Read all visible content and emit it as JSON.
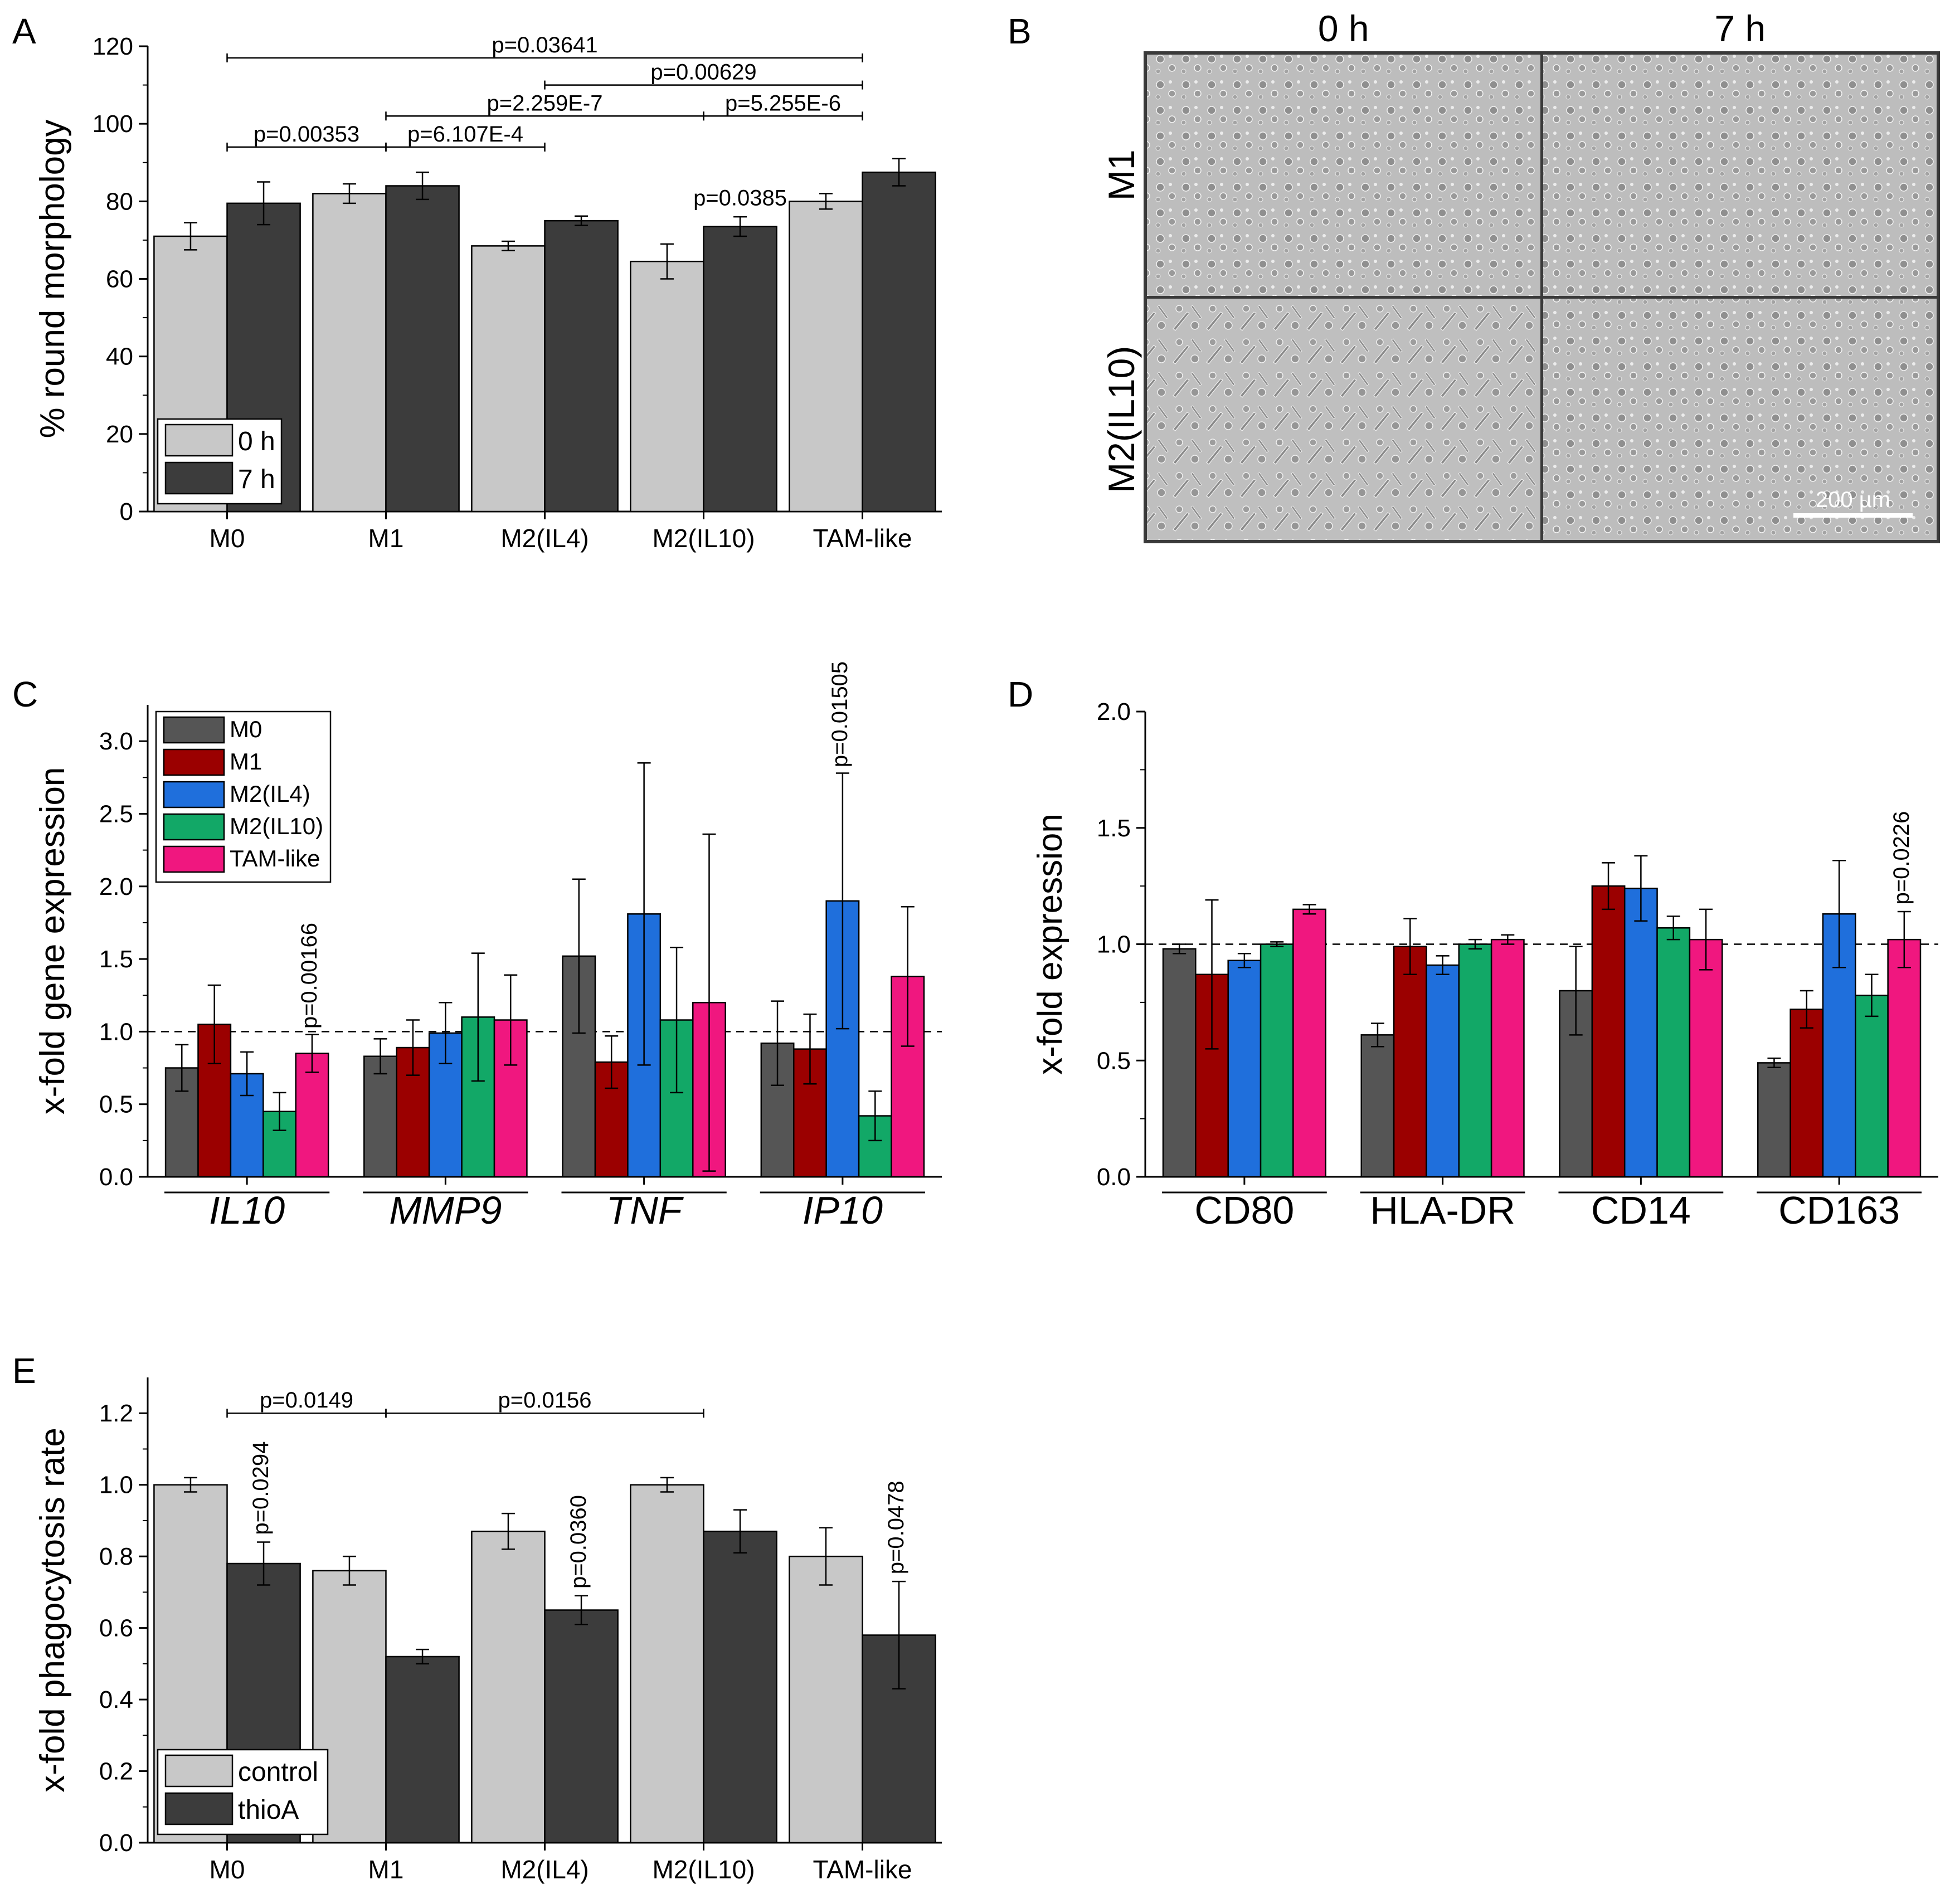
{
  "chart_data": [
    {
      "panel": "A",
      "type": "bar",
      "title": "",
      "ylabel": "% round morphology",
      "xlabel": "",
      "ylim": [
        0,
        120
      ],
      "yticks": [
        0,
        20,
        40,
        60,
        80,
        100,
        120
      ],
      "categories": [
        "M0",
        "M1",
        "M2(IL4)",
        "M2(IL10)",
        "TAM-like"
      ],
      "series": [
        {
          "name": "0 h",
          "color": "#c8c8c8",
          "values": [
            71,
            82,
            68.5,
            64.5,
            80
          ],
          "errors": [
            3.5,
            2.5,
            1.2,
            4.5,
            2
          ]
        },
        {
          "name": "7 h",
          "color": "#3c3c3c",
          "values": [
            79.5,
            84,
            75,
            73.5,
            87.5
          ],
          "errors": [
            5.5,
            3.5,
            1.2,
            2.5,
            3.5
          ]
        }
      ],
      "legend": "bottom-left",
      "annotations": [
        {
          "text": "p=0.03641",
          "from": 0,
          "to": 4,
          "y": 117
        },
        {
          "text": "p=0.00629",
          "from": 2,
          "to": 4,
          "y": 110
        },
        {
          "text": "p=2.259E-7",
          "from": 1,
          "to": 3,
          "y": 102
        },
        {
          "text": "p=5.255E-6",
          "from": 3,
          "to": 4,
          "y": 102
        },
        {
          "text": "p=0.00353",
          "from": 0,
          "to": 1,
          "y": 94
        },
        {
          "text": "p=6.107E-4",
          "from": 1,
          "to": 2,
          "y": 94
        },
        {
          "text": "p=0.0385",
          "category": 3,
          "series": 1,
          "y": 79
        }
      ]
    },
    {
      "panel": "B",
      "type": "image",
      "columns": [
        "0 h",
        "7 h"
      ],
      "rows": [
        "M1",
        "M2(IL10)"
      ],
      "scale_bar": "200 µm"
    },
    {
      "panel": "C",
      "type": "bar",
      "title": "",
      "ylabel": "x-fold gene expression",
      "xlabel": "",
      "ylim": [
        0,
        3.25
      ],
      "yticks": [
        0.0,
        0.5,
        1.0,
        1.5,
        2.0,
        2.5,
        3.0
      ],
      "reference_line": 1.0,
      "categories": [
        "IL10",
        "MMP9",
        "TNF",
        "IP10"
      ],
      "category_italic": true,
      "series": [
        {
          "name": "M0",
          "color": "#555555",
          "values": [
            0.75,
            0.83,
            1.52,
            0.92
          ],
          "errors": [
            0.16,
            0.12,
            0.53,
            0.29
          ]
        },
        {
          "name": "M1",
          "color": "#9b0000",
          "values": [
            1.05,
            0.89,
            0.79,
            0.88
          ],
          "errors": [
            0.27,
            0.19,
            0.18,
            0.24
          ]
        },
        {
          "name": "M2(IL4)",
          "color": "#1f6fdc",
          "values": [
            0.71,
            0.99,
            1.81,
            1.9
          ],
          "errors": [
            0.15,
            0.21,
            1.04,
            0.88
          ]
        },
        {
          "name": "M2(IL10)",
          "color": "#12a867",
          "values": [
            0.45,
            1.1,
            1.08,
            0.42
          ],
          "errors": [
            0.13,
            0.44,
            0.5,
            0.17
          ]
        },
        {
          "name": "TAM-like",
          "color": "#f0177f",
          "values": [
            0.85,
            1.08,
            1.2,
            1.38
          ],
          "errors": [
            0.13,
            0.31,
            1.16,
            0.48
          ]
        }
      ],
      "legend": "top-left",
      "annotations": [
        {
          "text": "p=0.00166",
          "category": 0,
          "series": 4,
          "y": 1.02
        },
        {
          "text": "p=0.01505",
          "category": 3,
          "series": 2,
          "y": 2.82
        }
      ]
    },
    {
      "panel": "D",
      "type": "bar",
      "title": "",
      "ylabel": "x-fold expression",
      "xlabel": "",
      "ylim": [
        0,
        2.0
      ],
      "yticks": [
        0.0,
        0.5,
        1.0,
        1.5,
        2.0
      ],
      "reference_line": 1.0,
      "categories": [
        "CD80",
        "HLA-DR",
        "CD14",
        "CD163"
      ],
      "series": [
        {
          "name": "M0",
          "color": "#555555",
          "values": [
            0.98,
            0.61,
            0.8,
            0.49
          ],
          "errors": [
            0.02,
            0.05,
            0.19,
            0.02
          ]
        },
        {
          "name": "M1",
          "color": "#9b0000",
          "values": [
            0.87,
            0.99,
            1.25,
            0.72
          ],
          "errors": [
            0.32,
            0.12,
            0.1,
            0.08
          ]
        },
        {
          "name": "M2(IL4)",
          "color": "#1f6fdc",
          "values": [
            0.93,
            0.91,
            1.24,
            1.13
          ],
          "errors": [
            0.03,
            0.04,
            0.14,
            0.23
          ]
        },
        {
          "name": "M2(IL10)",
          "color": "#12a867",
          "values": [
            1.0,
            1.0,
            1.07,
            0.78
          ],
          "errors": [
            0.01,
            0.02,
            0.05,
            0.09
          ]
        },
        {
          "name": "TAM-like",
          "color": "#f0177f",
          "values": [
            1.15,
            1.02,
            1.02,
            1.02
          ],
          "errors": [
            0.02,
            0.02,
            0.13,
            0.12
          ]
        }
      ],
      "annotations": [
        {
          "text": "p=0.0226",
          "category": 3,
          "series": 4,
          "y": 1.17
        }
      ]
    },
    {
      "panel": "E",
      "type": "bar",
      "title": "",
      "ylabel": "x-fold phagocytosis rate",
      "xlabel": "",
      "ylim": [
        0,
        1.3
      ],
      "yticks": [
        0.0,
        0.2,
        0.4,
        0.6,
        0.8,
        1.0,
        1.2
      ],
      "categories": [
        "M0",
        "M1",
        "M2(IL4)",
        "M2(IL10)",
        "TAM-like"
      ],
      "series": [
        {
          "name": "control",
          "color": "#c8c8c8",
          "values": [
            1.0,
            0.76,
            0.87,
            1.0,
            0.8
          ],
          "errors": [
            0.02,
            0.04,
            0.05,
            0.02,
            0.08
          ]
        },
        {
          "name": "thioA",
          "color": "#3c3c3c",
          "values": [
            0.78,
            0.52,
            0.65,
            0.87,
            0.58
          ],
          "errors": [
            0.06,
            0.02,
            0.04,
            0.06,
            0.15
          ]
        }
      ],
      "legend": "bottom-left",
      "annotations": [
        {
          "text": "p=0.0149",
          "from": 0,
          "to": 1,
          "y": 1.2
        },
        {
          "text": "p=0.0156",
          "from": 1,
          "to": 3,
          "y": 1.2
        },
        {
          "text": "p=0.0294",
          "category": 0,
          "series": 1,
          "y": 0.86
        },
        {
          "text": "p=0.0360",
          "category": 2,
          "series": 1,
          "y": 0.71
        },
        {
          "text": "p=0.0478",
          "category": 4,
          "series": 1,
          "y": 0.75
        }
      ]
    }
  ]
}
